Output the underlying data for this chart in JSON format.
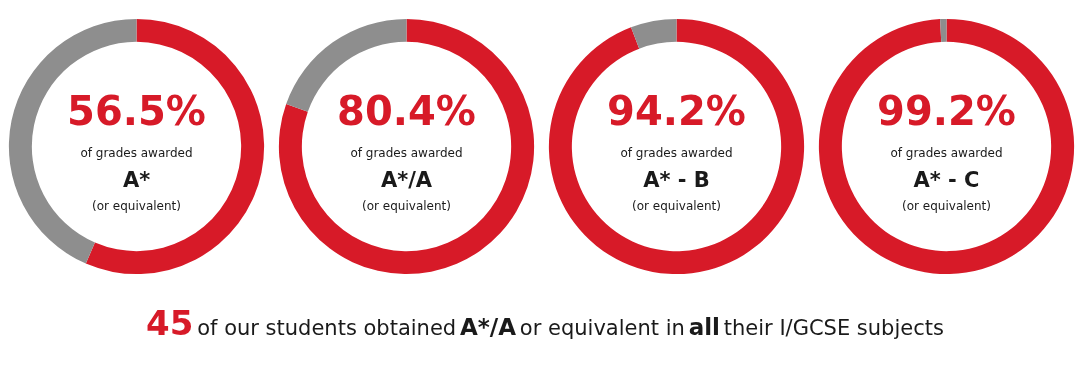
{
  "chart_data": [
    {
      "type": "donut",
      "categories": [
        null,
        null
      ],
      "values": [
        56.5,
        43.5
      ],
      "colors": [
        "#d71a28",
        "#8e8e8e"
      ],
      "value_labels": [
        "56.5%",
        null
      ],
      "annotations": [
        "of grades awarded",
        "A*",
        "(or equivalent)"
      ]
    },
    {
      "type": "donut",
      "categories": [
        null,
        null
      ],
      "values": [
        80.4,
        19.6
      ],
      "colors": [
        "#d71a28",
        "#8e8e8e"
      ],
      "value_labels": [
        "80.4%",
        null
      ],
      "annotations": [
        "of grades awarded",
        "A*/A",
        "(or equivalent)"
      ]
    },
    {
      "type": "donut",
      "categories": [
        null,
        null
      ],
      "values": [
        94.2,
        5.8
      ],
      "colors": [
        "#d71a28",
        "#8e8e8e"
      ],
      "value_labels": [
        "94.2%",
        null
      ],
      "annotations": [
        "of grades awarded",
        "A* - B",
        "(or equivalent)"
      ]
    },
    {
      "type": "donut",
      "categories": [
        null,
        null
      ],
      "values": [
        99.2,
        0.8
      ],
      "colors": [
        "#d71a28",
        "#8e8e8e"
      ],
      "value_labels": [
        "99.2%",
        null
      ],
      "annotations": [
        "of grades awarded",
        "A* - C",
        "(or equivalent)"
      ]
    },
    {
      "type": "other",
      "annotations": [
        "45",
        "of our students obtained",
        "A*/A",
        "or equivalent in",
        "all",
        "their I/GCSE subjects"
      ]
    }
  ]
}
